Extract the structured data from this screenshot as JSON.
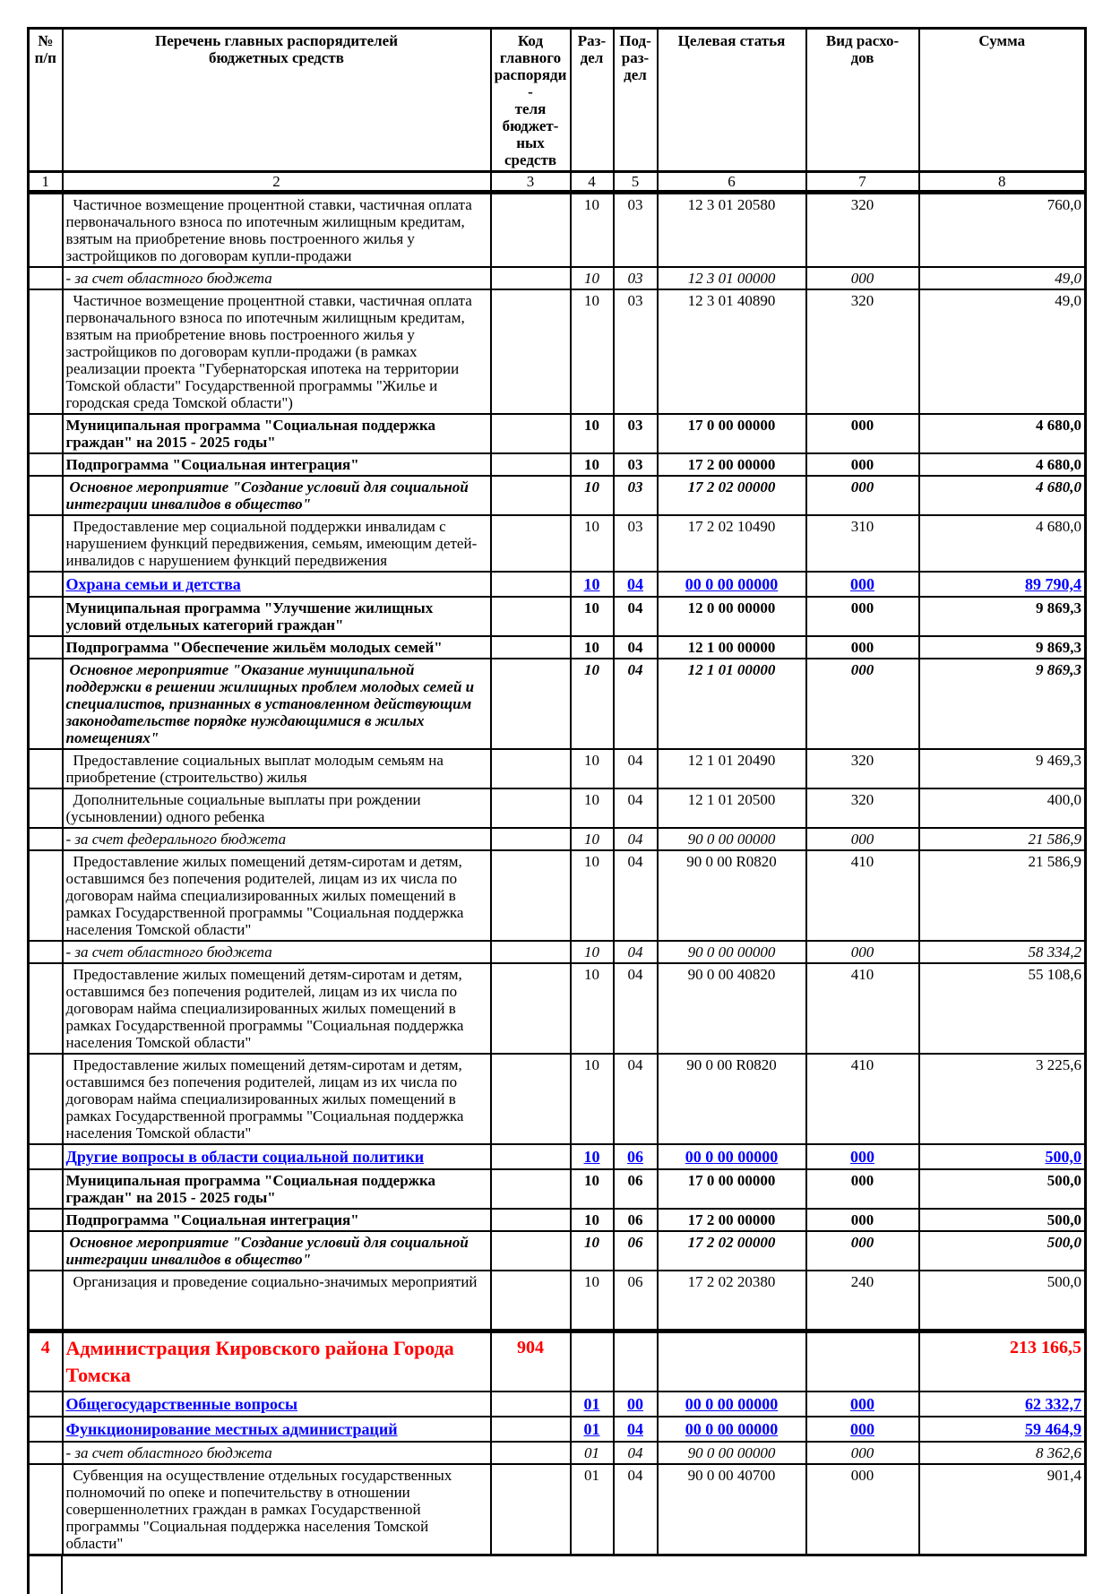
{
  "colors": {
    "section_blue": "#0000ff",
    "main_red": "#ff0000",
    "text": "#000000",
    "border": "#000000",
    "background": "#ffffff"
  },
  "header": {
    "columns": [
      {
        "label": "№\nп/п"
      },
      {
        "label": "Перечень главных распорядителей\nбюджетных средств"
      },
      {
        "label": "Код\nглавного\nраспоряди-\nтеля бюджет-\nных средств"
      },
      {
        "label": "Раз-\nдел"
      },
      {
        "label": "Под-\nраз-\nдел"
      },
      {
        "label": "Целевая статья"
      },
      {
        "label": "Вид расхо-\nдов"
      },
      {
        "label": "Сумма"
      }
    ],
    "numbering": [
      "1",
      "2",
      "3",
      "4",
      "5",
      "6",
      "7",
      "8"
    ]
  },
  "rows": [
    {
      "num": "",
      "name": "Частичное возмещение процентной ставки, частичная оплата первоначального взноса по ипотечным жилищным кредитам, взятым на приобретение вновь построенного жилья у застройщиков по договорам купли-продажи",
      "code": "",
      "rd": "10",
      "pr": "03",
      "cs": "12 3 01 20580",
      "vr": "320",
      "sum": "760,0",
      "style": "normal"
    },
    {
      "num": "",
      "name": "- за счет областного бюджета",
      "code": "",
      "rd": "10",
      "pr": "03",
      "cs": "12 3 01 00000",
      "vr": "000",
      "sum": "49,0",
      "style": "italic"
    },
    {
      "num": "",
      "name": "Частичное возмещение процентной ставки, частичная оплата первоначального взноса по ипотечным жилищным кредитам, взятым на приобретение вновь построенного жилья у застройщиков по договорам купли-продажи  (в рамках реализации проекта \"Губернаторская ипотека на территории Томской области\" Государственной программы \"Жилье и городская среда Томской области\")",
      "code": "",
      "rd": "10",
      "pr": "03",
      "cs": "12 3 01 40890",
      "vr": "320",
      "sum": "49,0",
      "style": "normal"
    },
    {
      "num": "",
      "name": "Муниципальная программа \"Социальная поддержка граждан\" на 2015 - 2025 годы\"",
      "code": "",
      "rd": "10",
      "pr": "03",
      "cs": "17 0 00 00000",
      "vr": "000",
      "sum": "4 680,0",
      "style": "bold"
    },
    {
      "num": "",
      "name": "Подпрограмма \"Социальная интеграция\"",
      "code": "",
      "rd": "10",
      "pr": "03",
      "cs": "17 2 00 00000",
      "vr": "000",
      "sum": "4 680,0",
      "style": "bold"
    },
    {
      "num": "",
      "name": "Основное мероприятие \"Создание условий для социальной интеграции инвалидов в общество\"",
      "code": "",
      "rd": "10",
      "pr": "03",
      "cs": "17 2 02 00000",
      "vr": "000",
      "sum": "4 680,0",
      "style": "bolditalic"
    },
    {
      "num": "",
      "name": "Предоставление мер социальной поддержки инвалидам с нарушением функций передвижения, семьям, имеющим детей-инвалидов с нарушением функций передвижения",
      "code": "",
      "rd": "10",
      "pr": "03",
      "cs": "17 2 02 10490",
      "vr": "310",
      "sum": "4 680,0",
      "style": "normal"
    },
    {
      "num": "",
      "name": "Охрана семьи и детства",
      "code": "",
      "rd": "10",
      "pr": "04",
      "cs": "00 0 00 00000",
      "vr": "000",
      "sum": "89 790,4",
      "style": "section"
    },
    {
      "num": "",
      "name": "Муниципальная программа \"Улучшение жилищных условий отдельных категорий граждан\"",
      "code": "",
      "rd": "10",
      "pr": "04",
      "cs": "12 0 00 00000",
      "vr": "000",
      "sum": "9 869,3",
      "style": "bold"
    },
    {
      "num": "",
      "name": "Подпрограмма \"Обеспечение жильём молодых семей\"",
      "code": "",
      "rd": "10",
      "pr": "04",
      "cs": "12 1 00 00000",
      "vr": "000",
      "sum": "9 869,3",
      "style": "bold"
    },
    {
      "num": "",
      "name": "Основное мероприятие \"Оказание муниципальной поддержки в решении жилищных проблем молодых семей и специалистов, признанных в установленном действующим законодательстве порядке нуждающимися в жилых помещениях\"",
      "code": "",
      "rd": "10",
      "pr": "04",
      "cs": "12 1 01 00000",
      "vr": "000",
      "sum": "9 869,3",
      "style": "bolditalic"
    },
    {
      "num": "",
      "name": "Предоставление социальных выплат  молодым семьям на приобретение (строительство) жилья",
      "code": "",
      "rd": "10",
      "pr": "04",
      "cs": "12 1 01 20490",
      "vr": "320",
      "sum": "9 469,3",
      "style": "normal"
    },
    {
      "num": "",
      "name": "Дополнительные социальные выплаты при рождении (усыновлении) одного ребенка",
      "code": "",
      "rd": "10",
      "pr": "04",
      "cs": "12 1 01 20500",
      "vr": "320",
      "sum": "400,0",
      "style": "normal"
    },
    {
      "num": "",
      "name": "- за счет федерального бюджета",
      "code": "",
      "rd": "10",
      "pr": "04",
      "cs": "90 0 00 00000",
      "vr": "000",
      "sum": "21 586,9",
      "style": "italic"
    },
    {
      "num": "",
      "name": "Предоставление жилых помещений детям-сиротам и детям, оставшимся без попечения родителей, лицам из их числа по договорам найма специализированных жилых помещений  в рамках Государственной программы \"Социальная поддержка населения Томской области\"",
      "code": "",
      "rd": "10",
      "pr": "04",
      "cs": "90 0 00 R0820",
      "vr": "410",
      "sum": "21 586,9",
      "style": "normal"
    },
    {
      "num": "",
      "name": "- за счет областного бюджета",
      "code": "",
      "rd": "10",
      "pr": "04",
      "cs": "90 0 00 00000",
      "vr": "000",
      "sum": "58 334,2",
      "style": "italic"
    },
    {
      "num": "",
      "name": "Предоставление жилых помещений детям-сиротам и детям, оставшимся без попечения родителей, лицам из их числа по договорам найма специализированных жилых помещений  в рамках Государственной программы \"Социальная поддержка населения Томской области\"",
      "code": "",
      "rd": "10",
      "pr": "04",
      "cs": "90 0 00 40820",
      "vr": "410",
      "sum": "55 108,6",
      "style": "normal"
    },
    {
      "num": "",
      "name": "Предоставление жилых помещений детям-сиротам и детям, оставшимся без попечения родителей, лицам из их числа по договорам найма специализированных жилых помещений  в рамках Государственной программы \"Социальная поддержка населения Томской области\"",
      "code": "",
      "rd": "10",
      "pr": "04",
      "cs": "90 0 00 R0820",
      "vr": "410",
      "sum": "3 225,6",
      "style": "normal"
    },
    {
      "num": "",
      "name": "Другие вопросы в области социальной политики",
      "code": "",
      "rd": "10",
      "pr": "06",
      "cs": "00 0 00 00000",
      "vr": "000",
      "sum": "500,0",
      "style": "section"
    },
    {
      "num": "",
      "name": "Муниципальная программа \"Социальная поддержка граждан\" на 2015 - 2025 годы\"",
      "code": "",
      "rd": "10",
      "pr": "06",
      "cs": "17 0 00 00000",
      "vr": "000",
      "sum": "500,0",
      "style": "bold"
    },
    {
      "num": "",
      "name": "Подпрограмма \"Социальная интеграция\"",
      "code": "",
      "rd": "10",
      "pr": "06",
      "cs": "17 2 00 00000",
      "vr": "000",
      "sum": "500,0",
      "style": "bold"
    },
    {
      "num": "",
      "name": "Основное мероприятие \"Создание условий для социальной интеграции инвалидов в общество\"",
      "code": "",
      "rd": "10",
      "pr": "06",
      "cs": "17 2 02 00000",
      "vr": "000",
      "sum": "500,0",
      "style": "bolditalic"
    },
    {
      "num": "",
      "name": "Организация и проведение социально-значимых мероприятий",
      "code": "",
      "rd": "10",
      "pr": "06",
      "cs": "17 2 02 20380",
      "vr": "240",
      "sum": "500,0",
      "style": "normal",
      "tall": true
    },
    {
      "num": "4",
      "name": "Администрация Кировского района Города Томска",
      "code": "904",
      "rd": "",
      "pr": "",
      "cs": "",
      "vr": "",
      "sum": "213 166,5",
      "style": "main",
      "thickTop": true
    },
    {
      "num": "",
      "name": "Общегосударственные вопросы",
      "code": "",
      "rd": "01",
      "pr": "00",
      "cs": "00 0 00 00000",
      "vr": "000",
      "sum": "62 332,7",
      "style": "section"
    },
    {
      "num": "",
      "name": "Функционирование местных администраций",
      "code": "",
      "rd": "01",
      "pr": "04",
      "cs": "00 0 00 00000",
      "vr": "000",
      "sum": "59 464,9",
      "style": "section"
    },
    {
      "num": "",
      "name": "- за счет областного бюджета",
      "code": "",
      "rd": "01",
      "pr": "04",
      "cs": "90 0 00 00000",
      "vr": "000",
      "sum": "8 362,6",
      "style": "italic"
    },
    {
      "num": "",
      "name": "Субвенция на осуществление отдельных государственных полномочий по опеке и попечительству в отношении совершеннолетних граждан в рамках Государственной программы \"Социальная поддержка населения Томской области\"",
      "code": "",
      "rd": "01",
      "pr": "04",
      "cs": "90 0 00 40700",
      "vr": "000",
      "sum": "901,4",
      "style": "normal"
    }
  ]
}
